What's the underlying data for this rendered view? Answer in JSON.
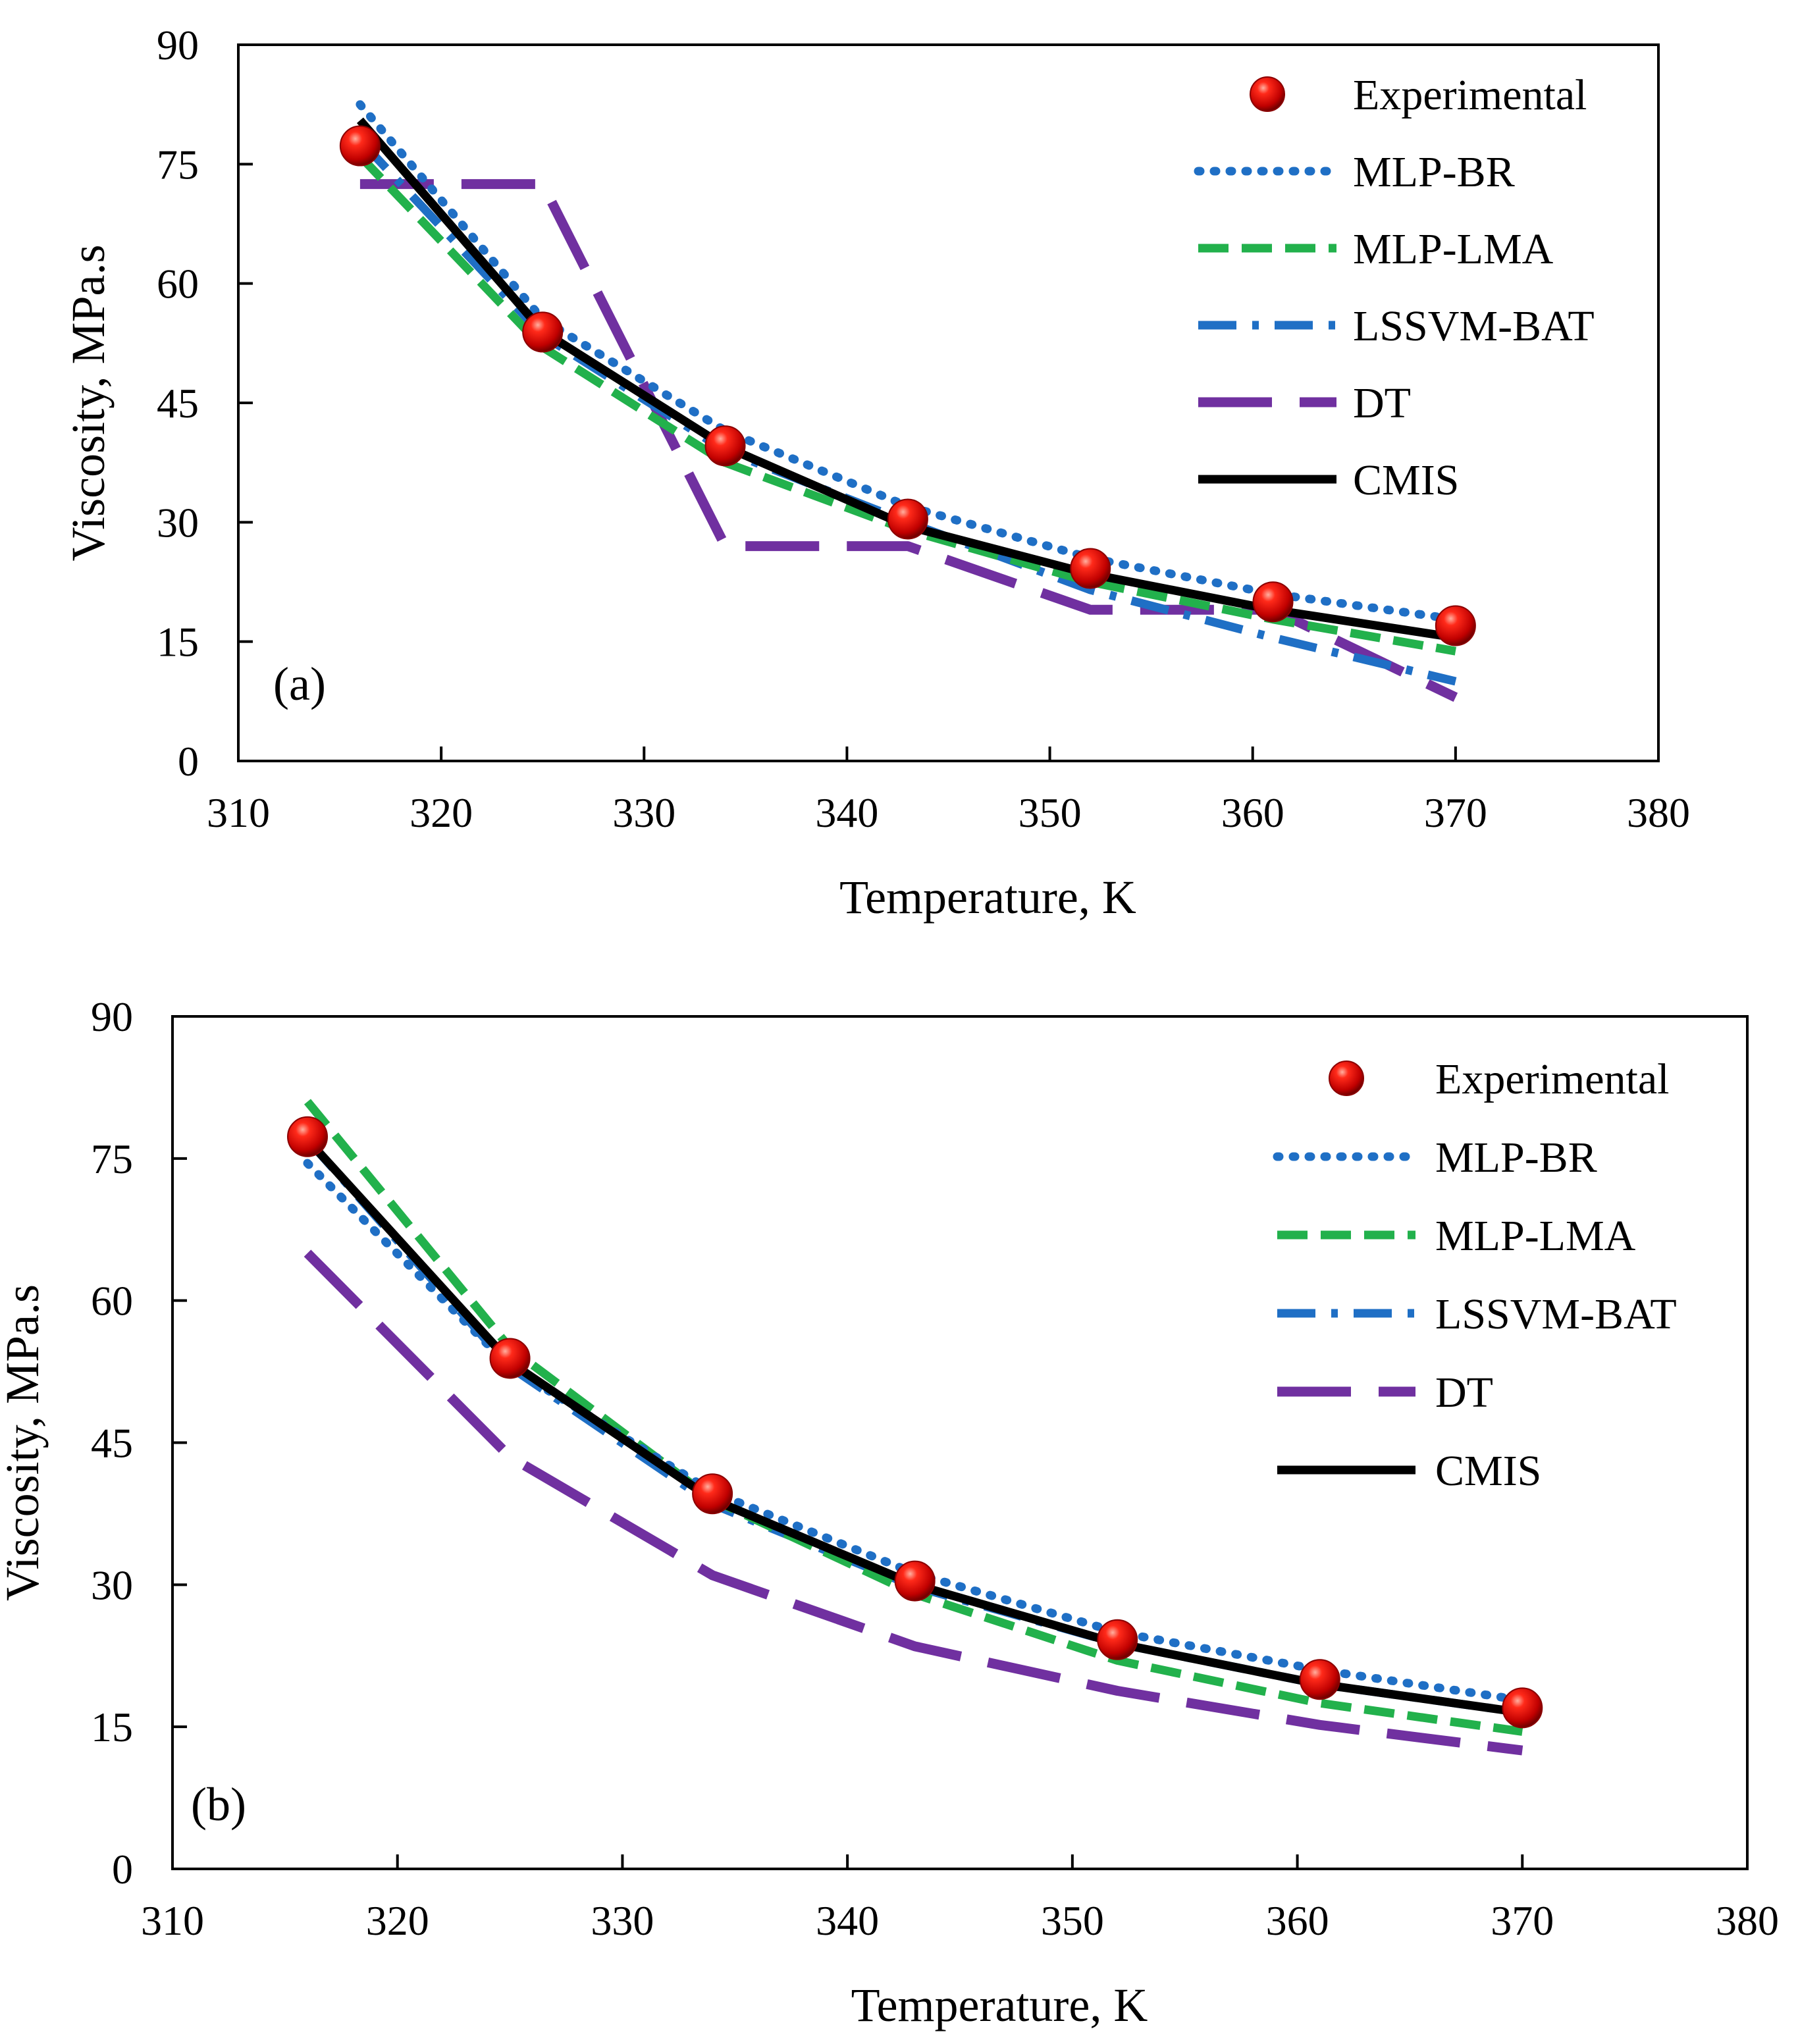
{
  "chart_data": [
    {
      "type": "line",
      "panel_label": "(a)",
      "xlabel": "Temperature, K",
      "ylabel": "Viscosity, MPa.s",
      "xlim": [
        310,
        380
      ],
      "ylim": [
        0,
        90
      ],
      "xticks": [
        310,
        320,
        330,
        340,
        350,
        360,
        370,
        380
      ],
      "yticks": [
        0,
        15,
        30,
        45,
        60,
        75,
        90
      ],
      "legend_position": "top-right",
      "series": [
        {
          "name": "Experimental",
          "style": "marker",
          "color": "#e01010",
          "x": [
            316,
            325,
            334,
            343,
            352,
            361,
            370
          ],
          "y": [
            77.3,
            53.9,
            39.6,
            30.4,
            24.2,
            20.0,
            17.0
          ]
        },
        {
          "name": "MLP-BR",
          "style": "dotted",
          "color": "#1f6fc5",
          "x": [
            316,
            325,
            334,
            343,
            352,
            361,
            370
          ],
          "y": [
            82.5,
            55.5,
            41.5,
            32.0,
            25.5,
            21.0,
            17.8
          ]
        },
        {
          "name": "MLP-LMA",
          "style": "dashed",
          "color": "#22b14c",
          "x": [
            316,
            325,
            334,
            343,
            352,
            361,
            370
          ],
          "y": [
            76.0,
            52.0,
            37.5,
            29.0,
            22.5,
            17.8,
            13.8
          ]
        },
        {
          "name": "LSSVM-BAT",
          "style": "dashdot",
          "color": "#1f6fc5",
          "x": [
            316,
            325,
            334,
            343,
            352,
            361,
            370
          ],
          "y": [
            78.0,
            53.5,
            39.0,
            30.0,
            21.5,
            15.5,
            10.0
          ]
        },
        {
          "name": "DT",
          "style": "longdash",
          "color": "#7030a0",
          "x": [
            316,
            325,
            334,
            343,
            352,
            361,
            370
          ],
          "y": [
            72.5,
            72.5,
            27.0,
            27.0,
            19.0,
            19.0,
            8.0
          ]
        },
        {
          "name": "CMIS",
          "style": "solid",
          "color": "#000000",
          "x": [
            316,
            325,
            334,
            343,
            352,
            361,
            370
          ],
          "y": [
            80.5,
            54.0,
            39.5,
            29.5,
            23.5,
            19.0,
            15.5
          ]
        }
      ]
    },
    {
      "type": "line",
      "panel_label": "(b)",
      "xlabel": "Temperature, K",
      "ylabel": "Viscosity, MPa.s",
      "xlim": [
        310,
        380
      ],
      "ylim": [
        0,
        90
      ],
      "xticks": [
        310,
        320,
        330,
        340,
        350,
        360,
        370,
        380
      ],
      "yticks": [
        0,
        15,
        30,
        45,
        60,
        75,
        90
      ],
      "legend_position": "top-right",
      "series": [
        {
          "name": "Experimental",
          "style": "marker",
          "color": "#e01010",
          "x": [
            316,
            325,
            334,
            343,
            352,
            361,
            370
          ],
          "y": [
            77.3,
            53.9,
            39.6,
            30.4,
            24.2,
            20.0,
            17.0
          ]
        },
        {
          "name": "MLP-BR",
          "style": "dotted",
          "color": "#1f6fc5",
          "x": [
            316,
            325,
            334,
            343,
            352,
            361,
            370
          ],
          "y": [
            74.5,
            53.0,
            39.8,
            31.2,
            25.0,
            21.0,
            17.8
          ]
        },
        {
          "name": "MLP-LMA",
          "style": "dashed",
          "color": "#22b14c",
          "x": [
            316,
            325,
            334,
            343,
            352,
            361,
            370
          ],
          "y": [
            81.0,
            55.0,
            39.0,
            29.0,
            22.0,
            17.5,
            14.5
          ]
        },
        {
          "name": "LSSVM-BAT",
          "style": "dashdot",
          "color": "#1f6fc5",
          "x": [
            316,
            325,
            334,
            343,
            352,
            361,
            370
          ],
          "y": [
            77.0,
            53.0,
            38.5,
            29.8,
            23.8,
            19.5,
            16.5
          ]
        },
        {
          "name": "DT",
          "style": "longdash",
          "color": "#7030a0",
          "x": [
            316,
            325,
            334,
            343,
            352,
            361,
            370
          ],
          "y": [
            65.0,
            43.5,
            31.0,
            23.5,
            18.8,
            15.2,
            12.5
          ]
        },
        {
          "name": "CMIS",
          "style": "solid",
          "color": "#000000",
          "x": [
            316,
            325,
            334,
            343,
            352,
            361,
            370
          ],
          "y": [
            77.0,
            53.5,
            39.0,
            30.0,
            23.8,
            19.5,
            16.5
          ]
        }
      ]
    }
  ]
}
